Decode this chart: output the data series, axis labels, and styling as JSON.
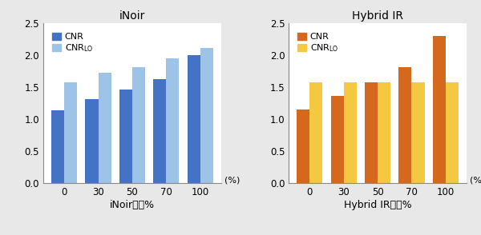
{
  "inoir": {
    "title": "iNoir",
    "categories": [
      "0",
      "30",
      "50",
      "70",
      "100"
    ],
    "xlabel": "iNoir設定%",
    "cnr_values": [
      1.14,
      1.32,
      1.47,
      1.63,
      2.0
    ],
    "cnrlo_values": [
      1.58,
      1.73,
      1.82,
      1.95,
      2.12
    ],
    "cnr_color": "#4472C4",
    "cnrlo_color": "#9DC3E6"
  },
  "hybrid": {
    "title": "Hybrid IR",
    "categories": [
      "0",
      "30",
      "50",
      "70",
      "100"
    ],
    "xlabel": "Hybrid IR設定%",
    "cnr_values": [
      1.15,
      1.37,
      1.58,
      1.82,
      2.31
    ],
    "cnrlo_values": [
      1.58,
      1.58,
      1.58,
      1.58,
      1.58
    ],
    "cnr_color": "#D4691E",
    "cnrlo_color": "#F5C842"
  },
  "ylim": [
    0,
    2.5
  ],
  "yticks": [
    0.0,
    0.5,
    1.0,
    1.5,
    2.0,
    2.5
  ],
  "bar_width": 0.38,
  "background_color": "#e8e8e8",
  "percent_label": "(%)"
}
